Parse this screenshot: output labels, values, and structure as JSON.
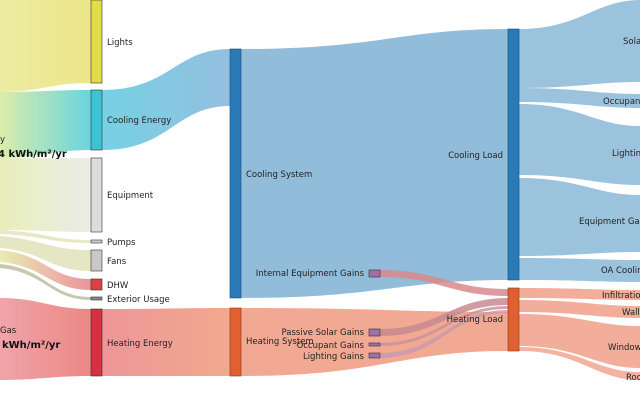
{
  "diagram": {
    "type": "sankey",
    "energy_labels": {
      "electricity_fragment": "y",
      "electricity_intensity": "4 kWh/m²/yr",
      "gas_label": "Gas",
      "gas_intensity": "kWh/m²/yr"
    },
    "end_uses": [
      {
        "id": "lights",
        "label": "Lights",
        "color": "#e2dc4a"
      },
      {
        "id": "cooling-energy",
        "label": "Cooling Energy",
        "color": "#3cc4d4"
      },
      {
        "id": "equipment",
        "label": "Equipment",
        "color": "#dcdcdc"
      },
      {
        "id": "pumps",
        "label": "Pumps",
        "color": "#d0d0d0"
      },
      {
        "id": "fans",
        "label": "Fans",
        "color": "#c8c8c8"
      },
      {
        "id": "dhw",
        "label": "DHW",
        "color": "#d94048"
      },
      {
        "id": "exterior-usage",
        "label": "Exterior Usage",
        "color": "#888888"
      },
      {
        "id": "heating-energy",
        "label": "Heating Energy",
        "color": "#d83040"
      }
    ],
    "systems": {
      "cooling_system": "Cooling System",
      "heating_system": "Heating System",
      "cooling_load": "Cooling Load",
      "heating_load": "Heating Load"
    },
    "heating_gains": [
      {
        "id": "internal-equipment-gains",
        "label": "Internal Equipment Gains"
      },
      {
        "id": "passive-solar-gains",
        "label": "Passive Solar Gains"
      },
      {
        "id": "occupant-gains",
        "label": "Occupant Gains"
      },
      {
        "id": "lighting-gains",
        "label": "Lighting Gains"
      }
    ],
    "cooling_components": [
      {
        "id": "solar",
        "label": "Solar"
      },
      {
        "id": "occupants",
        "label": "Occupants"
      },
      {
        "id": "lighting",
        "label": "Lighting"
      },
      {
        "id": "equipment-gains",
        "label": "Equipment Gains"
      },
      {
        "id": "oa-cooling",
        "label": "OA Cooling"
      }
    ],
    "heating_components": [
      {
        "id": "infiltration",
        "label": "Infiltration"
      },
      {
        "id": "walls",
        "label": "Walls"
      },
      {
        "id": "windows",
        "label": "Windows"
      },
      {
        "id": "roof",
        "label": "Roof"
      }
    ],
    "colors": {
      "cooling_node": "#2a7ab8",
      "cooling_flow": "#8bb8d8",
      "heating_node": "#e06030",
      "heating_flow": "#f0a088",
      "gains_node": "#a070a8",
      "gains_flow": "#c890a8"
    }
  }
}
